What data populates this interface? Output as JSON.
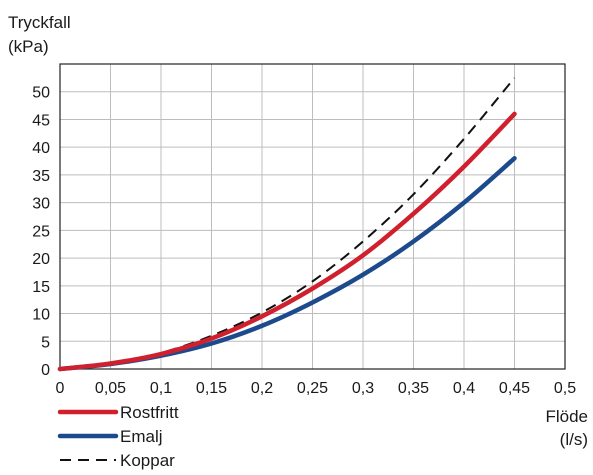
{
  "chart_data": {
    "type": "line",
    "title": "",
    "ylabel": "Tryckfall",
    "ylabel_unit": "(kPa)",
    "xlabel": "Flöde",
    "xlabel_unit": "(l/s)",
    "xlim": [
      0,
      0.5
    ],
    "ylim": [
      0,
      55
    ],
    "x_ticks": [
      0,
      0.05,
      0.1,
      0.15,
      0.2,
      0.25,
      0.3,
      0.35,
      0.4,
      0.45,
      0.5
    ],
    "x_tick_labels": [
      "0",
      "0,05",
      "0,1",
      "0,15",
      "0,2",
      "0,25",
      "0,3",
      "0,35",
      "0,4",
      "0,45",
      "0,5"
    ],
    "y_ticks": [
      0,
      5,
      10,
      15,
      20,
      25,
      30,
      35,
      40,
      45,
      50
    ],
    "y_tick_labels": [
      "0",
      "5",
      "10",
      "15",
      "20",
      "25",
      "30",
      "35",
      "40",
      "45",
      "50"
    ],
    "grid": true,
    "legend_position": "bottom-left",
    "x": [
      0,
      0.05,
      0.1,
      0.15,
      0.2,
      0.25,
      0.3,
      0.35,
      0.4,
      0.45
    ],
    "series": [
      {
        "name": "Rostfritt",
        "color": "#d0202e",
        "style": "solid",
        "values": [
          0,
          1.0,
          2.7,
          5.5,
          9.5,
          14.5,
          20.5,
          28,
          36.5,
          46
        ]
      },
      {
        "name": "Emalj",
        "color": "#1d4a8c",
        "style": "solid",
        "values": [
          0,
          0.9,
          2.4,
          4.6,
          7.8,
          12,
          17,
          23,
          30,
          38
        ]
      },
      {
        "name": "Koppar",
        "color": "#111111",
        "style": "dashed",
        "values": [
          0,
          1.0,
          2.9,
          6.0,
          10.2,
          15.8,
          23,
          31.5,
          41.5,
          52.5
        ]
      }
    ]
  }
}
